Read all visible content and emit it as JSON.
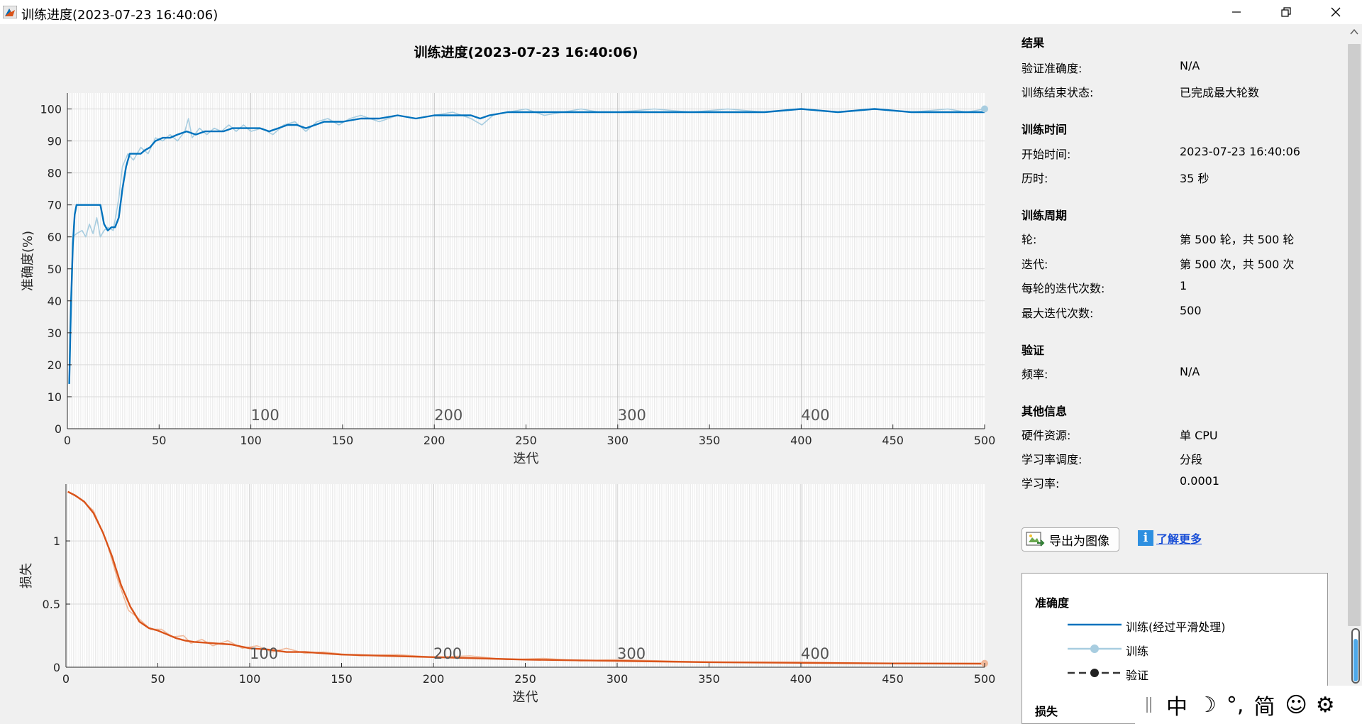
{
  "window": {
    "title": "训练进度(2023-07-23 16:40:06)"
  },
  "colors": {
    "accuracy_smoothed": "#0072bd",
    "accuracy_raw": "#a8cde0",
    "loss_smoothed": "#d95319",
    "loss_raw": "#f0b89a",
    "grid": "#e6e6e6",
    "link": "#1a4fd6"
  },
  "chart_data": [
    {
      "type": "line",
      "title": "训练进度(2023-07-23 16:40:06)",
      "xlabel": "迭代",
      "ylabel": "准确度(%)",
      "xlim": [
        0,
        500
      ],
      "ylim": [
        0,
        105
      ],
      "xticks": [
        0,
        50,
        100,
        150,
        200,
        250,
        300,
        350,
        400,
        450,
        500
      ],
      "yticks": [
        0,
        10,
        20,
        30,
        40,
        50,
        60,
        70,
        80,
        90,
        100
      ],
      "epoch_markers": [
        "100",
        "200",
        "300",
        "400"
      ],
      "grid": true,
      "series": [
        {
          "name": "训练(经过平滑处理)",
          "x": [
            1,
            2,
            3,
            4,
            5,
            6,
            8,
            10,
            12,
            14,
            16,
            18,
            20,
            22,
            24,
            26,
            28,
            30,
            32,
            34,
            36,
            38,
            40,
            42,
            45,
            48,
            52,
            56,
            60,
            65,
            70,
            75,
            80,
            85,
            90,
            100,
            105,
            110,
            115,
            120,
            125,
            130,
            140,
            150,
            160,
            170,
            180,
            190,
            200,
            210,
            220,
            225,
            230,
            240,
            250,
            260,
            270,
            280,
            290,
            300,
            320,
            340,
            360,
            380,
            400,
            420,
            440,
            460,
            480,
            490,
            500
          ],
          "values": [
            14,
            40,
            58,
            67,
            70,
            70,
            70,
            70,
            70,
            70,
            70,
            70,
            64,
            62,
            63,
            63,
            66,
            75,
            82,
            86,
            86,
            86,
            86,
            87,
            88,
            90,
            91,
            91,
            92,
            93,
            92,
            93,
            93,
            93,
            94,
            94,
            94,
            93,
            94,
            95,
            95,
            94,
            96,
            96,
            97,
            97,
            98,
            97,
            98,
            98,
            98,
            97,
            98,
            99,
            99,
            99,
            99,
            99,
            99,
            99,
            99,
            99,
            99,
            99,
            100,
            99,
            100,
            99,
            99,
            99,
            99
          ]
        },
        {
          "name": "训练",
          "x": [
            1,
            3,
            5,
            8,
            10,
            12,
            14,
            16,
            18,
            20,
            22,
            25,
            28,
            30,
            33,
            36,
            40,
            44,
            48,
            52,
            56,
            60,
            64,
            66,
            68,
            72,
            76,
            80,
            84,
            88,
            92,
            96,
            100,
            106,
            112,
            118,
            124,
            130,
            136,
            142,
            148,
            154,
            160,
            170,
            180,
            190,
            200,
            210,
            220,
            226,
            232,
            240,
            250,
            260,
            270,
            280,
            290,
            300,
            320,
            340,
            360,
            380,
            400,
            420,
            440,
            460,
            480,
            490,
            500
          ],
          "values": [
            14,
            60,
            61,
            62,
            60,
            64,
            61,
            66,
            60,
            62,
            63,
            62,
            72,
            82,
            86,
            84,
            88,
            86,
            91,
            90,
            92,
            90,
            93,
            97,
            91,
            94,
            92,
            94,
            93,
            95,
            93,
            95,
            93,
            94,
            92,
            95,
            96,
            93,
            96,
            97,
            95,
            97,
            98,
            96,
            98,
            97,
            98,
            99,
            97,
            95,
            98,
            99,
            100,
            98,
            99,
            100,
            99,
            99,
            100,
            99,
            100,
            99,
            100,
            99,
            100,
            99,
            100,
            99,
            100
          ]
        }
      ]
    },
    {
      "type": "line",
      "xlabel": "迭代",
      "ylabel": "损失",
      "xlim": [
        0,
        500
      ],
      "ylim": [
        0,
        1.45
      ],
      "xticks": [
        0,
        50,
        100,
        150,
        200,
        250,
        300,
        350,
        400,
        450,
        500
      ],
      "yticks": [
        0,
        0.5,
        1
      ],
      "epoch_markers": [
        "100",
        "200",
        "300",
        "400"
      ],
      "grid": true,
      "series": [
        {
          "name": "训练(经过平滑处理)",
          "x": [
            1,
            5,
            10,
            15,
            20,
            25,
            30,
            35,
            40,
            45,
            50,
            55,
            60,
            65,
            70,
            80,
            90,
            100,
            110,
            120,
            130,
            150,
            175,
            200,
            225,
            250,
            275,
            300,
            350,
            400,
            450,
            500
          ],
          "values": [
            1.39,
            1.36,
            1.31,
            1.22,
            1.07,
            0.88,
            0.65,
            0.48,
            0.36,
            0.31,
            0.29,
            0.26,
            0.23,
            0.21,
            0.2,
            0.19,
            0.18,
            0.15,
            0.14,
            0.12,
            0.12,
            0.1,
            0.09,
            0.08,
            0.07,
            0.06,
            0.055,
            0.05,
            0.04,
            0.035,
            0.03,
            0.028
          ]
        },
        {
          "name": "训练",
          "x": [
            1,
            8,
            15,
            22,
            28,
            34,
            40,
            46,
            52,
            58,
            64,
            68,
            74,
            80,
            88,
            96,
            104,
            112,
            120,
            130,
            140,
            160,
            180,
            200,
            220,
            240,
            260,
            280,
            300,
            350,
            400,
            450,
            500
          ],
          "values": [
            1.39,
            1.33,
            1.24,
            1.0,
            0.7,
            0.45,
            0.38,
            0.3,
            0.3,
            0.24,
            0.25,
            0.19,
            0.22,
            0.17,
            0.21,
            0.15,
            0.17,
            0.12,
            0.15,
            0.11,
            0.12,
            0.09,
            0.1,
            0.08,
            0.09,
            0.06,
            0.07,
            0.05,
            0.06,
            0.04,
            0.04,
            0.03,
            0.03
          ]
        }
      ]
    }
  ],
  "side": {
    "results": {
      "title": "结果",
      "rows": [
        {
          "label": "验证准确度:",
          "value": "N/A"
        },
        {
          "label": "训练结束状态:",
          "value": "已完成最大轮数"
        }
      ]
    },
    "time": {
      "title": "训练时间",
      "rows": [
        {
          "label": "开始时间:",
          "value": "2023-07-23 16:40:06"
        },
        {
          "label": "历时:",
          "value": "35 秒"
        }
      ]
    },
    "cycle": {
      "title": "训练周期",
      "rows": [
        {
          "label": "轮:",
          "value": "第 500 轮，共 500 轮"
        },
        {
          "label": "迭代:",
          "value": "第 500 次，共 500 次"
        },
        {
          "label": "每轮的迭代次数:",
          "value": "1"
        },
        {
          "label": "最大迭代次数:",
          "value": "500"
        }
      ]
    },
    "validation": {
      "title": "验证",
      "rows": [
        {
          "label": "频率:",
          "value": "N/A"
        }
      ]
    },
    "other": {
      "title": "其他信息",
      "rows": [
        {
          "label": "硬件资源:",
          "value": "单 CPU"
        },
        {
          "label": "学习率调度:",
          "value": "分段"
        },
        {
          "label": "学习率:",
          "value": "0.0001"
        }
      ]
    },
    "export_button": "导出为图像",
    "learn_more": "了解更多",
    "legend": {
      "accuracy_title": "准确度",
      "items": [
        "训练(经过平滑处理)",
        "训练",
        "验证"
      ],
      "loss_title": "损失"
    }
  },
  "ime": {
    "mode": "中",
    "moon": "☽",
    "punct": "°,",
    "script": "简",
    "emoji": "☺",
    "settings": "⚙"
  }
}
